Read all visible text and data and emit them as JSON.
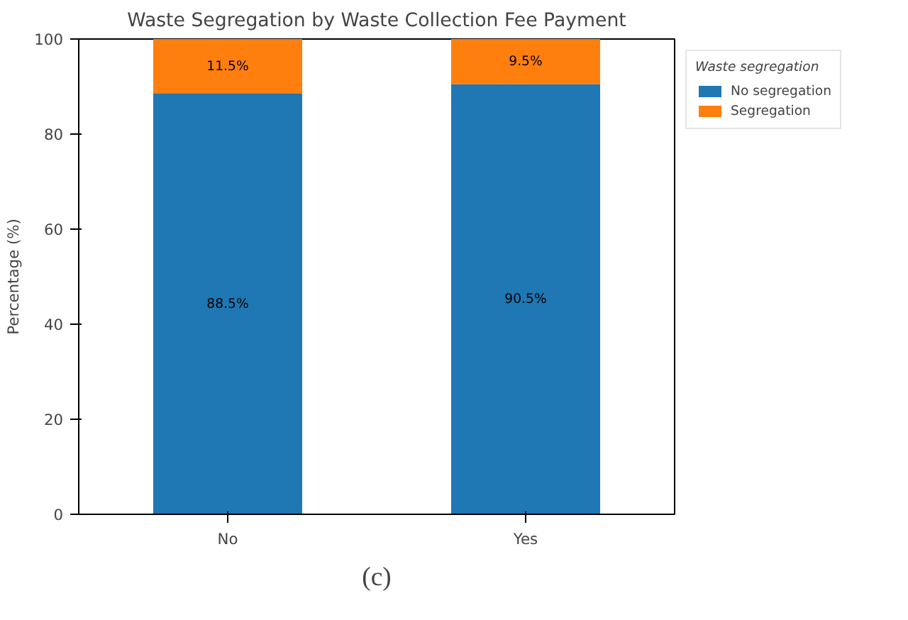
{
  "chart_data": {
    "type": "bar",
    "stacked": true,
    "title": "Waste Segregation by Waste Collection Fee Payment",
    "ylabel": "Percentage (%)",
    "legend_title": "Waste segregation",
    "categories": [
      "No",
      "Yes"
    ],
    "series": [
      {
        "name": "No segregation",
        "color": "#1f77b4",
        "values": [
          88.5,
          90.5
        ],
        "value_labels": [
          "88.5%",
          "90.5%"
        ]
      },
      {
        "name": "Segregation",
        "color": "#ff7f0e",
        "values": [
          11.5,
          9.5
        ],
        "value_labels": [
          "11.5%",
          "9.5%"
        ]
      }
    ],
    "ylim": [
      0,
      100
    ],
    "yticks": [
      0,
      20,
      40,
      60,
      80,
      100
    ],
    "grid": false,
    "legend": "top right",
    "annotations": [
      "(c)"
    ]
  }
}
